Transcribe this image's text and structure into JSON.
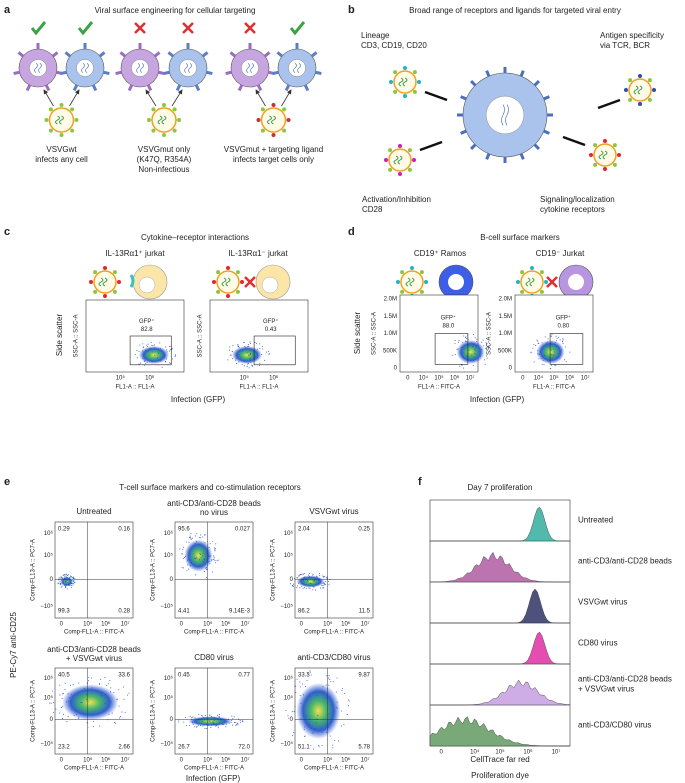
{
  "panel_a": {
    "letter": "a",
    "title": "Viral surface engineering for cellular targeting",
    "captions": [
      [
        "VSVGwt",
        "infects any cell"
      ],
      [
        "VSVGmut only",
        "(K47Q, R354A)",
        "Non-infectious"
      ],
      [
        "VSVGmut + targeting ligand",
        "infects target cells only"
      ]
    ]
  },
  "panel_b": {
    "letter": "b",
    "title": "Broad range of receptors and ligands for targeted viral entry",
    "labels": [
      {
        "lines": [
          "Lineage",
          "CD3, CD19, CD20"
        ],
        "color": "#22b5c8"
      },
      {
        "lines": [
          "Antigen specificity",
          "via TCR, BCR"
        ],
        "color": "#2c4fa3"
      },
      {
        "lines": [
          "Activation/Inhibition",
          "CD28"
        ],
        "color": "#d01fa8"
      },
      {
        "lines": [
          "Signaling/localization",
          "cytokine receptors"
        ],
        "color": "#e0282e"
      }
    ]
  },
  "panel_c": {
    "letter": "c",
    "title": "Cytokine–receptor interactions",
    "y_label": "Side scatter",
    "x_label": "Infection (GFP)",
    "plots": [
      {
        "title": "IL-13Rα1⁺ jurkat",
        "y_axis": "SSC-A :: SSC-A",
        "x_axis": "FL1-A :: FL1-A",
        "xticks": [
          "10⁵",
          "10⁶"
        ],
        "gate": [
          "GFP⁺",
          "82.8"
        ]
      },
      {
        "title": "IL-13Rα1⁻ jurkat",
        "y_axis": "SSC-A :: SSC-A",
        "x_axis": "FL1-A :: FL1-A",
        "xticks": [
          "10⁵",
          "10⁶"
        ],
        "gate": [
          "GFP⁺",
          "0.43"
        ]
      }
    ]
  },
  "panel_d": {
    "letter": "d",
    "title": "B-cell surface markers",
    "y_label": "Side scatter",
    "x_label": "Infection (GFP)",
    "plots": [
      {
        "title": "CD19⁺ Ramos",
        "y_axis": "SSC-A :: SSC-A",
        "x_axis": "FL1-A :: FITC-A",
        "yticks": [
          "2.0M",
          "1.5M",
          "1.0M",
          "500K",
          "0"
        ],
        "xticks": [
          "0",
          "10⁴",
          "10⁵",
          "10⁶",
          "10⁷"
        ],
        "gate": [
          "GFP⁺",
          "88.0"
        ]
      },
      {
        "title": "CD19⁻ Jurkat",
        "y_axis": "SSC-A :: SSC-A",
        "x_axis": "FL1-A :: FITC-A",
        "yticks": [
          "2.0M",
          "1.5M",
          "1.0M",
          "500K",
          "0"
        ],
        "xticks": [
          "0",
          "10⁴",
          "10⁵",
          "10⁶",
          "10⁷"
        ],
        "gate": [
          "GFP⁺",
          "0.80"
        ]
      }
    ]
  },
  "panel_e": {
    "letter": "e",
    "title": "T-cell surface markers and co-stimulation receptors",
    "y_label": "PE-Cy7 anti-CD25",
    "x_label": "Infection (GFP)",
    "y_axis": "Comp-FL13-A :: PC7-A",
    "x_axis": "Comp-FL1-A :: FITC-A",
    "yticks": [
      "10⁶",
      "10⁵",
      "0",
      "−10⁵"
    ],
    "xticks": [
      "0",
      "10⁵",
      "10⁶",
      "10⁷"
    ],
    "plots": [
      {
        "title": [
          "Untreated"
        ],
        "quadrants": [
          "0.29",
          "0.16",
          "99.3",
          "0.28"
        ]
      },
      {
        "title": [
          "anti-CD3/anti-CD28 beads",
          "no virus"
        ],
        "quadrants": [
          "95.6",
          "0.027",
          "4.41",
          "9.14E-3"
        ]
      },
      {
        "title": [
          "VSVGwt virus"
        ],
        "quadrants": [
          "2.04",
          "0.25",
          "86.2",
          "11.5"
        ]
      },
      {
        "title": [
          "anti-CD3/anti-CD28 beads",
          "+ VSVGwt virus"
        ],
        "quadrants": [
          "40.5",
          "33.6",
          "23.2",
          "2.66"
        ]
      },
      {
        "title": [
          "CD80 virus"
        ],
        "quadrants": [
          "0.45",
          "0.77",
          "26.7",
          "72.0"
        ]
      },
      {
        "title": [
          "anti-CD3/CD80 virus"
        ],
        "quadrants": [
          "33.3",
          "9.87",
          "51.1",
          "5.78"
        ]
      }
    ]
  },
  "panel_f": {
    "letter": "f",
    "title": "Day 7 proliferation",
    "axis": "CellTrace far red",
    "x_label": "Proliferation dye",
    "xticks": [
      "0",
      "10⁴",
      "10⁵",
      "10⁶",
      "10⁷"
    ],
    "rows": [
      {
        "label": [
          "Untreated"
        ],
        "color": "#3fb3a3"
      },
      {
        "label": [
          "anti-CD3/anti-CD28 beads"
        ],
        "color": "#b565a9"
      },
      {
        "label": [
          "VSVGwt virus"
        ],
        "color": "#3a3f6e"
      },
      {
        "label": [
          "CD80 virus"
        ],
        "color": "#e23ba8"
      },
      {
        "label": [
          "anti-CD3/anti-CD28 beads",
          "+ VSVGwt virus"
        ],
        "color": "#c9a3e3"
      },
      {
        "label": [
          "anti-CD3/CD80 virus"
        ],
        "color": "#6aa06a"
      }
    ]
  }
}
